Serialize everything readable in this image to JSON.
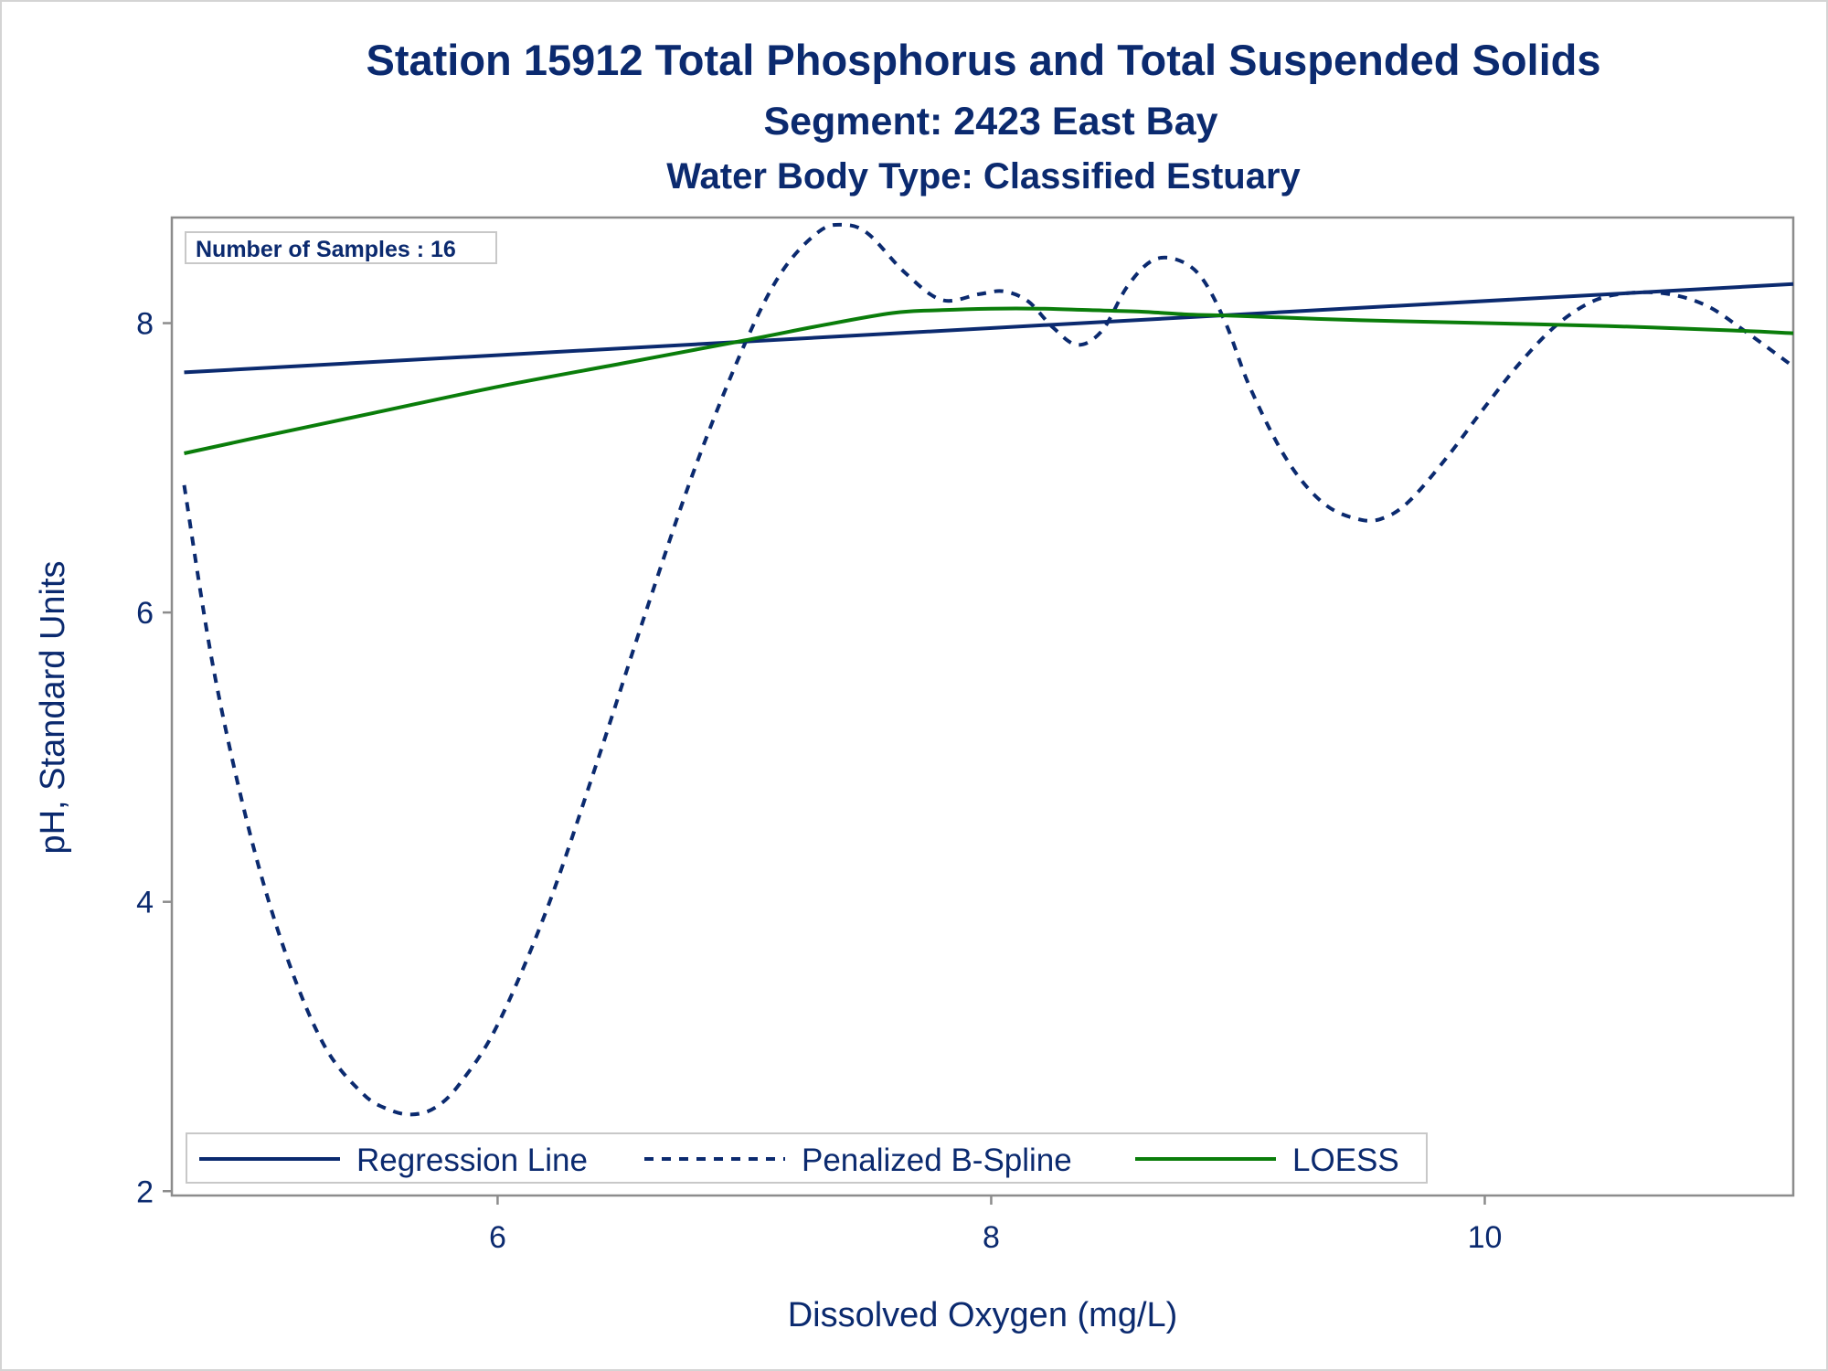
{
  "chart_data": {
    "type": "line",
    "title": "Station 15912  Total Phosphorus and Total Suspended Solids",
    "subtitle": "Segment: 2423  East Bay",
    "subtitle2": "Water Body Type: Classified Estuary",
    "xlabel": "Dissolved Oxygen (mg/L)",
    "ylabel": "pH, Standard Units",
    "xlim": [
      4.68,
      11.25
    ],
    "ylim": [
      1.97,
      8.73
    ],
    "xticks": [
      6,
      8,
      10
    ],
    "yticks": [
      2,
      4,
      6,
      8
    ],
    "grid": false,
    "legend_position": "bottom-inside",
    "inset_label": "Number of Samples : 16",
    "colors": {
      "regression": "#0b2a6f",
      "spline": "#0b2a6f",
      "loess": "#0a7d0a",
      "text": "#0b2a6f",
      "axis": "#8c8c8c"
    },
    "series": [
      {
        "name": "Regression Line",
        "style": "solid",
        "x": [
          4.73,
          11.25
        ],
        "y": [
          7.66,
          8.27
        ]
      },
      {
        "name": "Penalized B-Spline",
        "style": "dashed",
        "x": [
          4.73,
          4.85,
          5.0,
          5.15,
          5.3,
          5.45,
          5.55,
          5.65,
          5.75,
          5.85,
          6.0,
          6.2,
          6.4,
          6.6,
          6.8,
          7.0,
          7.15,
          7.3,
          7.4,
          7.5,
          7.65,
          7.8,
          7.95,
          8.05,
          8.15,
          8.25,
          8.35,
          8.45,
          8.55,
          8.65,
          8.75,
          8.85,
          8.95,
          9.05,
          9.2,
          9.35,
          9.5,
          9.6,
          9.7,
          9.85,
          10.0,
          10.15,
          10.3,
          10.45,
          10.6,
          10.75,
          10.9,
          11.05,
          11.25
        ],
        "y": [
          6.88,
          5.6,
          4.45,
          3.6,
          3.0,
          2.68,
          2.57,
          2.53,
          2.58,
          2.75,
          3.15,
          3.95,
          4.95,
          6.0,
          7.0,
          7.85,
          8.35,
          8.63,
          8.68,
          8.62,
          8.35,
          8.16,
          8.2,
          8.22,
          8.15,
          7.97,
          7.85,
          7.95,
          8.25,
          8.43,
          8.44,
          8.32,
          8.0,
          7.55,
          7.05,
          6.75,
          6.64,
          6.66,
          6.78,
          7.08,
          7.42,
          7.74,
          8.0,
          8.16,
          8.21,
          8.2,
          8.12,
          7.95,
          7.7
        ]
      },
      {
        "name": "LOESS",
        "style": "solid",
        "x": [
          4.73,
          5.0,
          5.5,
          6.0,
          6.5,
          7.0,
          7.3,
          7.6,
          7.8,
          8.0,
          8.2,
          8.4,
          8.6,
          8.8,
          9.0,
          9.5,
          10.0,
          10.5,
          11.0,
          11.25
        ],
        "y": [
          7.1,
          7.2,
          7.38,
          7.56,
          7.72,
          7.88,
          7.98,
          8.07,
          8.09,
          8.1,
          8.1,
          8.09,
          8.08,
          8.06,
          8.05,
          8.02,
          8.0,
          7.98,
          7.95,
          7.93
        ]
      }
    ]
  }
}
